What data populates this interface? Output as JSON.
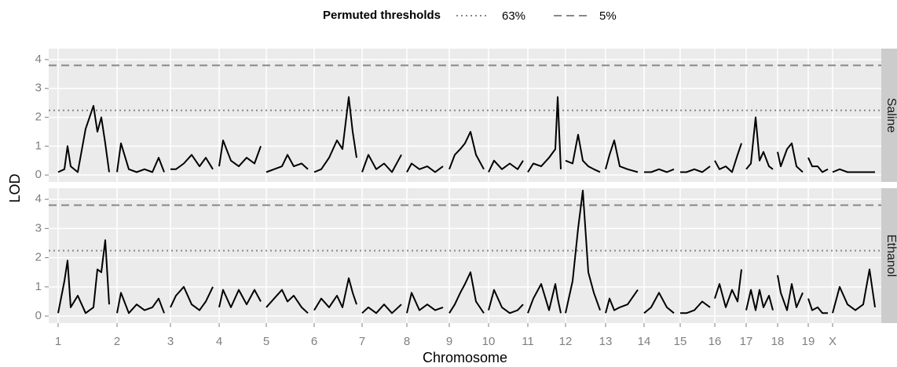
{
  "chart_data": {
    "type": "line",
    "facets": true,
    "legend_title": "Permuted thresholds",
    "thresholds": [
      {
        "name": "63%",
        "value": 2.24,
        "dash": "dotted",
        "color": "#888888"
      },
      {
        "name": "5%",
        "value": 3.8,
        "dash": "dashed",
        "color": "#888888"
      }
    ],
    "ylabel": "LOD",
    "xlabel": "Chromosome",
    "xlim": [
      -12,
      1048
    ],
    "xticks": [
      {
        "value": 0,
        "label": "1"
      },
      {
        "value": 75,
        "label": "2"
      },
      {
        "value": 143,
        "label": "3"
      },
      {
        "value": 205,
        "label": "4"
      },
      {
        "value": 265,
        "label": "5"
      },
      {
        "value": 326,
        "label": "6"
      },
      {
        "value": 387,
        "label": "7"
      },
      {
        "value": 444,
        "label": "8"
      },
      {
        "value": 498,
        "label": "9"
      },
      {
        "value": 548,
        "label": "10"
      },
      {
        "value": 598,
        "label": "11"
      },
      {
        "value": 646,
        "label": "12"
      },
      {
        "value": 697,
        "label": "13"
      },
      {
        "value": 746,
        "label": "14"
      },
      {
        "value": 792,
        "label": "15"
      },
      {
        "value": 836,
        "label": "16"
      },
      {
        "value": 876,
        "label": "17"
      },
      {
        "value": 916,
        "label": "18"
      },
      {
        "value": 955,
        "label": "19"
      },
      {
        "value": 986,
        "label": "X"
      }
    ],
    "ylim": [
      -0.24,
      4.38
    ],
    "yticks": [
      0,
      1,
      2,
      3,
      4
    ],
    "grid": true,
    "x": [
      0,
      8,
      12,
      16,
      25,
      35,
      45,
      50,
      55,
      60,
      65,
      null,
      75,
      80,
      90,
      100,
      110,
      120,
      128,
      135,
      null,
      143,
      150,
      160,
      170,
      180,
      188,
      197,
      null,
      205,
      210,
      220,
      230,
      240,
      250,
      258,
      null,
      265,
      275,
      285,
      292,
      300,
      310,
      318,
      null,
      326,
      335,
      345,
      355,
      362,
      370,
      375,
      380,
      null,
      387,
      395,
      405,
      415,
      425,
      437,
      null,
      444,
      450,
      460,
      470,
      480,
      490,
      null,
      498,
      505,
      512,
      518,
      525,
      532,
      542,
      null,
      548,
      555,
      565,
      575,
      585,
      592,
      null,
      598,
      605,
      615,
      625,
      633,
      636,
      640,
      null,
      646,
      655,
      662,
      668,
      675,
      682,
      690,
      null,
      697,
      702,
      708,
      715,
      725,
      738,
      null,
      746,
      755,
      765,
      775,
      784,
      null,
      792,
      800,
      810,
      820,
      830,
      null,
      836,
      842,
      850,
      858,
      865,
      870,
      null,
      876,
      882,
      888,
      893,
      898,
      905,
      910,
      null,
      916,
      920,
      928,
      934,
      940,
      948,
      null,
      955,
      960,
      967,
      973,
      980,
      null,
      986,
      995,
      1005,
      1015,
      1025,
      1033,
      1040
    ],
    "series": [
      {
        "name": "Saline",
        "color": "#000000",
        "values": [
          0.1,
          0.2,
          1.0,
          0.3,
          0.1,
          1.6,
          2.4,
          1.5,
          2.0,
          1.1,
          0.1,
          null,
          0.1,
          1.1,
          0.2,
          0.1,
          0.2,
          0.1,
          0.6,
          0.1,
          null,
          0.2,
          0.2,
          0.4,
          0.7,
          0.3,
          0.6,
          0.2,
          null,
          0.3,
          1.2,
          0.5,
          0.3,
          0.6,
          0.4,
          1.0,
          null,
          0.1,
          0.2,
          0.3,
          0.7,
          0.3,
          0.4,
          0.2,
          null,
          0.1,
          0.2,
          0.6,
          1.2,
          0.9,
          2.7,
          1.5,
          0.6,
          null,
          0.1,
          0.7,
          0.2,
          0.4,
          0.1,
          0.7,
          null,
          0.1,
          0.4,
          0.2,
          0.3,
          0.1,
          0.3,
          null,
          0.2,
          0.7,
          0.9,
          1.1,
          1.5,
          0.7,
          0.2,
          null,
          0.1,
          0.5,
          0.2,
          0.4,
          0.2,
          0.5,
          null,
          0.1,
          0.4,
          0.3,
          0.6,
          0.9,
          2.7,
          0.2,
          null,
          0.5,
          0.4,
          1.4,
          0.5,
          0.3,
          0.2,
          0.1,
          null,
          0.2,
          0.7,
          1.2,
          0.3,
          0.2,
          0.1,
          null,
          0.1,
          0.1,
          0.2,
          0.1,
          0.2,
          null,
          0.1,
          0.1,
          0.2,
          0.1,
          0.3,
          null,
          0.5,
          0.2,
          0.3,
          0.1,
          0.7,
          1.1,
          null,
          0.2,
          0.4,
          2.0,
          0.5,
          0.8,
          0.3,
          0.2,
          null,
          0.8,
          0.3,
          0.9,
          1.1,
          0.3,
          0.1,
          null,
          0.6,
          0.3,
          0.3,
          0.1,
          0.2,
          null,
          0.1,
          0.2,
          0.1,
          0.1,
          0.1,
          0.1,
          0.1
        ]
      },
      {
        "name": "Ethanol",
        "color": "#000000",
        "values": [
          0.1,
          1.2,
          1.9,
          0.3,
          0.7,
          0.1,
          0.3,
          1.6,
          1.5,
          2.6,
          0.4,
          null,
          0.1,
          0.8,
          0.1,
          0.4,
          0.2,
          0.3,
          0.6,
          0.1,
          null,
          0.3,
          0.7,
          1.0,
          0.4,
          0.2,
          0.5,
          1.0,
          null,
          0.3,
          0.9,
          0.3,
          0.9,
          0.4,
          0.9,
          0.5,
          null,
          0.3,
          0.6,
          0.9,
          0.5,
          0.7,
          0.3,
          0.1,
          null,
          0.2,
          0.6,
          0.3,
          0.7,
          0.3,
          1.3,
          0.8,
          0.4,
          null,
          0.1,
          0.3,
          0.1,
          0.4,
          0.1,
          0.4,
          null,
          0.1,
          0.8,
          0.2,
          0.4,
          0.2,
          0.3,
          null,
          0.1,
          0.4,
          0.8,
          1.1,
          1.5,
          0.5,
          0.1,
          null,
          0.2,
          0.9,
          0.3,
          0.1,
          0.2,
          0.4,
          null,
          0.1,
          0.6,
          1.1,
          0.2,
          1.1,
          0.6,
          0.1,
          null,
          0.1,
          1.2,
          3.0,
          4.3,
          1.5,
          0.8,
          0.2,
          null,
          0.1,
          0.6,
          0.2,
          0.3,
          0.4,
          0.9,
          null,
          0.1,
          0.3,
          0.8,
          0.3,
          0.1,
          null,
          0.1,
          0.1,
          0.2,
          0.5,
          0.3,
          null,
          0.6,
          1.1,
          0.3,
          0.9,
          0.5,
          1.6,
          null,
          0.2,
          0.9,
          0.2,
          0.9,
          0.3,
          0.7,
          0.2,
          null,
          1.4,
          0.8,
          0.2,
          1.1,
          0.3,
          0.8,
          null,
          0.6,
          0.2,
          0.3,
          0.1,
          0.1,
          null,
          0.1,
          1.0,
          0.4,
          0.2,
          0.4,
          1.6,
          0.3
        ]
      }
    ]
  }
}
